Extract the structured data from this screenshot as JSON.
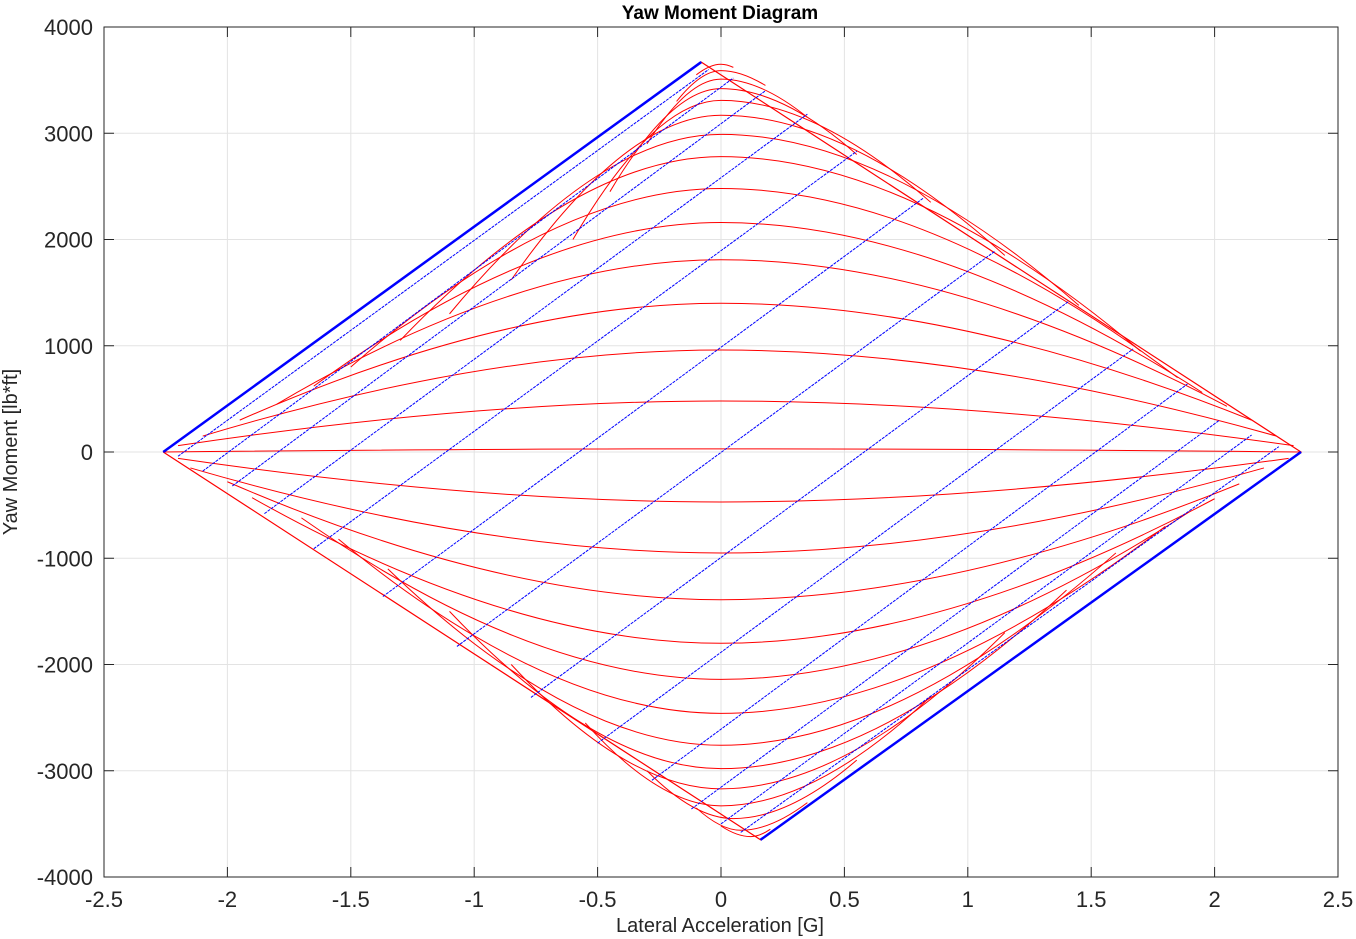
{
  "chart_data": {
    "type": "line",
    "title": "Yaw Moment Diagram",
    "xlabel": "Lateral Acceleration [G]",
    "ylabel": "Yaw Moment [lb*ft]",
    "xlim": [
      -2.5,
      2.5
    ],
    "ylim": [
      -4000,
      4000
    ],
    "xticks": [
      -2.5,
      -2,
      -1.5,
      -1,
      -0.5,
      0,
      0.5,
      1,
      1.5,
      2,
      2.5
    ],
    "xtick_labels": [
      "-2.5",
      "-2",
      "-1.5",
      "-1",
      "-0.5",
      "0",
      "0.5",
      "1",
      "1.5",
      "2",
      "2.5"
    ],
    "yticks": [
      -4000,
      -3000,
      -2000,
      -1000,
      0,
      1000,
      2000,
      3000,
      4000
    ],
    "ytick_labels": [
      "-4000",
      "-3000",
      "-2000",
      "-1000",
      "0",
      "1000",
      "2000",
      "3000",
      "4000"
    ],
    "grid": true,
    "series_colors": {
      "constant_steer": "#ff0000",
      "constant_slip": "#0000ff"
    },
    "outline": {
      "left_apex": [
        -2.26,
        0
      ],
      "top_apex": [
        -0.08,
        3670
      ],
      "right_apex": [
        2.35,
        0
      ],
      "bottom_apex": [
        0.16,
        -3650
      ]
    },
    "steer_lines": [
      {
        "left": [
          -2.26,
          0
        ],
        "mid": [
          0.0,
          30
        ],
        "right": [
          2.35,
          0
        ]
      },
      {
        "left": [
          -2.2,
          60
        ],
        "mid": [
          0.0,
          480
        ],
        "right": [
          2.32,
          60
        ]
      },
      {
        "left": [
          -2.1,
          150
        ],
        "mid": [
          0.0,
          960
        ],
        "right": [
          2.25,
          150
        ]
      },
      {
        "left": [
          -1.95,
          300
        ],
        "mid": [
          0.0,
          1400
        ],
        "right": [
          2.15,
          300
        ]
      },
      {
        "left": [
          -1.8,
          450
        ],
        "mid": [
          0.0,
          1810
        ],
        "right": [
          2.05,
          430
        ]
      },
      {
        "left": [
          -1.65,
          620
        ],
        "mid": [
          0.0,
          2160
        ],
        "right": [
          1.95,
          560
        ]
      },
      {
        "left": [
          -1.5,
          800
        ],
        "mid": [
          0.0,
          2480
        ],
        "right": [
          1.85,
          700
        ]
      },
      {
        "left": [
          -1.3,
          1050
        ],
        "mid": [
          0.0,
          2780
        ],
        "right": [
          1.7,
          950
        ]
      },
      {
        "left": [
          -1.1,
          1300
        ],
        "mid": [
          0.0,
          2990
        ],
        "right": [
          1.45,
          1380
        ]
      },
      {
        "left": [
          -0.85,
          1620
        ],
        "mid": [
          0.0,
          3170
        ],
        "right": [
          1.15,
          1850
        ]
      },
      {
        "left": [
          -0.6,
          2000
        ],
        "mid": [
          0.0,
          3310
        ],
        "right": [
          0.85,
          2350
        ]
      },
      {
        "left": [
          -0.45,
          2450
        ],
        "mid": [
          0.0,
          3420
        ],
        "right": [
          0.55,
          2800
        ]
      },
      {
        "left": [
          -0.3,
          2900
        ],
        "mid": [
          0.0,
          3510
        ],
        "right": [
          0.35,
          3150
        ]
      },
      {
        "left": [
          -0.18,
          3300
        ],
        "mid": [
          0.0,
          3590
        ],
        "right": [
          0.18,
          3450
        ]
      },
      {
        "left": [
          -0.1,
          3550
        ],
        "mid": [
          0.0,
          3650
        ],
        "right": [
          0.05,
          3620
        ]
      },
      {
        "left": [
          -2.2,
          -60
        ],
        "mid": [
          0.0,
          -470
        ],
        "right": [
          2.3,
          -60
        ]
      },
      {
        "left": [
          -2.15,
          -150
        ],
        "mid": [
          0.0,
          -950
        ],
        "right": [
          2.2,
          -150
        ]
      },
      {
        "left": [
          -2.0,
          -280
        ],
        "mid": [
          0.0,
          -1390
        ],
        "right": [
          2.1,
          -300
        ]
      },
      {
        "left": [
          -1.9,
          -430
        ],
        "mid": [
          0.0,
          -1800
        ],
        "right": [
          2.0,
          -440
        ]
      },
      {
        "left": [
          -1.7,
          -620
        ],
        "mid": [
          0.0,
          -2140
        ],
        "right": [
          1.9,
          -560
        ]
      },
      {
        "left": [
          -1.55,
          -820
        ],
        "mid": [
          0.0,
          -2460
        ],
        "right": [
          1.8,
          -700
        ]
      },
      {
        "left": [
          -1.35,
          -1100
        ],
        "mid": [
          0.0,
          -2760
        ],
        "right": [
          1.6,
          -950
        ]
      },
      {
        "left": [
          -1.1,
          -1500
        ],
        "mid": [
          0.0,
          -2980
        ],
        "right": [
          1.4,
          -1300
        ]
      },
      {
        "left": [
          -0.85,
          -2000
        ],
        "mid": [
          0.0,
          -3170
        ],
        "right": [
          1.15,
          -1700
        ]
      },
      {
        "left": [
          -0.55,
          -2550
        ],
        "mid": [
          0.0,
          -3330
        ],
        "right": [
          0.85,
          -2300
        ]
      },
      {
        "left": [
          -0.3,
          -3000
        ],
        "mid": [
          0.05,
          -3450
        ],
        "right": [
          0.55,
          -2900
        ]
      },
      {
        "left": [
          -0.1,
          -3350
        ],
        "mid": [
          0.08,
          -3560
        ],
        "right": [
          0.35,
          -3300
        ]
      },
      {
        "left": [
          0.0,
          -3520
        ],
        "mid": [
          0.12,
          -3620
        ],
        "right": [
          0.2,
          -3550
        ]
      }
    ],
    "slip_lines": [
      {
        "start": [
          -2.26,
          0
        ],
        "end": [
          -0.08,
          3670
        ]
      },
      {
        "start": [
          -2.2,
          -40
        ],
        "end": [
          -0.05,
          3600
        ]
      },
      {
        "start": [
          -2.1,
          -180
        ],
        "end": [
          0.05,
          3520
        ]
      },
      {
        "start": [
          -1.98,
          -320
        ],
        "end": [
          0.18,
          3400
        ]
      },
      {
        "start": [
          -1.85,
          -580
        ],
        "end": [
          0.35,
          3180
        ]
      },
      {
        "start": [
          -1.65,
          -910
        ],
        "end": [
          0.55,
          2830
        ]
      },
      {
        "start": [
          -1.37,
          -1360
        ],
        "end": [
          0.82,
          2390
        ]
      },
      {
        "start": [
          -1.07,
          -1830
        ],
        "end": [
          1.11,
          1890
        ]
      },
      {
        "start": [
          -0.77,
          -2310
        ],
        "end": [
          1.41,
          1420
        ]
      },
      {
        "start": [
          -0.5,
          -2740
        ],
        "end": [
          1.67,
          970
        ]
      },
      {
        "start": [
          -0.28,
          -3090
        ],
        "end": [
          1.89,
          640
        ]
      },
      {
        "start": [
          -0.12,
          -3360
        ],
        "end": [
          2.02,
          300
        ]
      },
      {
        "start": [
          0.0,
          -3500
        ],
        "end": [
          2.15,
          160
        ]
      },
      {
        "start": [
          0.08,
          -3580
        ],
        "end": [
          2.26,
          50
        ]
      },
      {
        "start": [
          0.16,
          -3650
        ],
        "end": [
          2.35,
          0
        ]
      }
    ]
  }
}
